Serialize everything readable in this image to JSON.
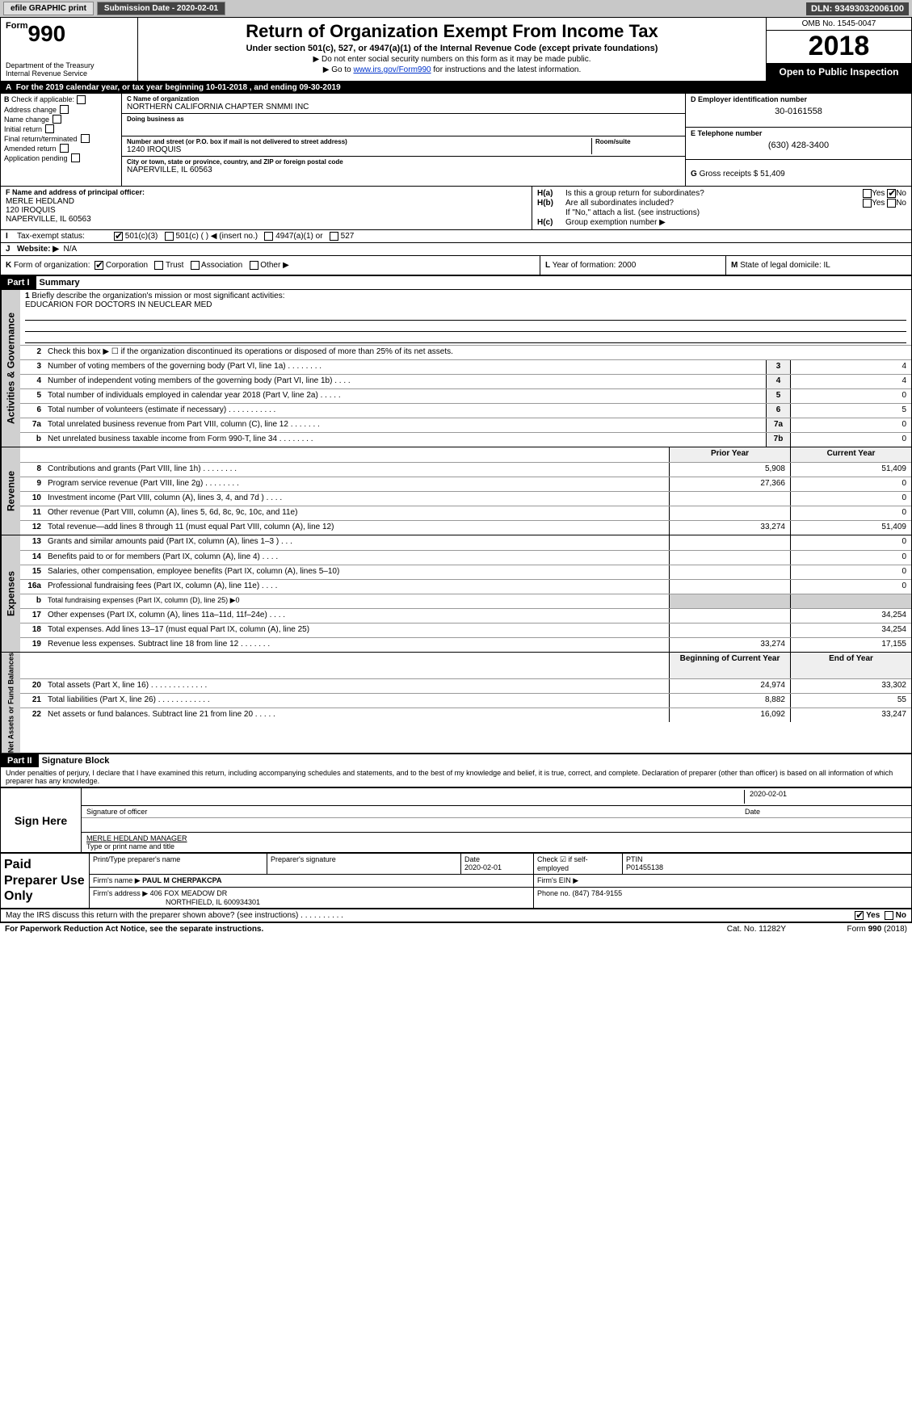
{
  "topbar": {
    "efile": "efile GRAPHIC print",
    "submission_label": "Submission Date - ",
    "submission_date": "2020-02-01",
    "dln_label": "DLN: ",
    "dln": "93493032006100"
  },
  "header": {
    "form_prefix": "Form",
    "form_number": "990",
    "dept": "Department of the Treasury\nInternal Revenue Service",
    "title": "Return of Organization Exempt From Income Tax",
    "subtitle": "Under section 501(c), 527, or 4947(a)(1) of the Internal Revenue Code (except private foundations)",
    "note1": "▶ Do not enter social security numbers on this form as it may be made public.",
    "note2_prefix": "▶ Go to ",
    "note2_link": "www.irs.gov/Form990",
    "note2_suffix": " for instructions and the latest information.",
    "omb": "OMB No. 1545-0047",
    "year": "2018",
    "open": "Open to Public Inspection"
  },
  "row_a": {
    "label": "A",
    "text_prefix": "For the 2019 calendar year, or tax year beginning ",
    "begin": "10-01-2018",
    "mid": " , and ending ",
    "end": "09-30-2019"
  },
  "section_b": {
    "label": "B",
    "check_if": "Check if applicable:",
    "items": [
      "Address change",
      "Name change",
      "Initial return",
      "Final return/terminated",
      "Amended return",
      "Application pending"
    ]
  },
  "section_c": {
    "name_label": "C Name of organization",
    "name": "NORTHERN CALIFORNIA CHAPTER SNMMI INC",
    "dba_label": "Doing business as",
    "dba": "",
    "street_label": "Number and street (or P.O. box if mail is not delivered to street address)",
    "street": "1240 IROQUIS",
    "room_label": "Room/suite",
    "city_label": "City or town, state or province, country, and ZIP or foreign postal code",
    "city": "NAPERVILLE, IL  60563"
  },
  "section_de": {
    "d_label": "D Employer identification number",
    "d_val": "30-0161558",
    "e_label": "E Telephone number",
    "e_val": "(630) 428-3400",
    "g_label": "G ",
    "g_text": "Gross receipts $ ",
    "g_val": "51,409"
  },
  "section_f": {
    "label": "F  Name and address of principal officer:",
    "line1": "MERLE HEDLAND",
    "line2": "120 IROQUIS",
    "line3": "NAPERVILLE, IL  60563"
  },
  "section_h": {
    "ha_label": "H(a)",
    "ha_text": "Is this a group return for subordinates?",
    "ha_yes": "Yes",
    "ha_no": "No",
    "hb_label": "H(b)",
    "hb_text": "Are all subordinates included?",
    "hb_yes": "Yes",
    "hb_no": "No",
    "hb_note": "If \"No,\" attach a list. (see instructions)",
    "hc_label": "H(c)",
    "hc_text": "Group exemption number ▶"
  },
  "row_i": {
    "label": "I",
    "text": "Tax-exempt status:",
    "opts": [
      "501(c)(3)",
      "501(c) (  ) ◀ (insert no.)",
      "4947(a)(1) or",
      "527"
    ]
  },
  "row_j": {
    "label": "J",
    "text": "Website: ▶",
    "val": "N/A"
  },
  "row_k": {
    "label": "K",
    "text": "Form of organization:",
    "opts": [
      "Corporation",
      "Trust",
      "Association",
      "Other ▶"
    ],
    "l_label": "L ",
    "l_text": "Year of formation: ",
    "l_val": "2000",
    "m_label": "M ",
    "m_text": "State of legal domicile: ",
    "m_val": "IL"
  },
  "part1": {
    "hdr": "Part I",
    "title": "Summary"
  },
  "summary": {
    "line1_label": "1",
    "line1_text": "Briefly describe the organization's mission or most significant activities:",
    "mission": "EDUCARION FOR DOCTORS IN NEUCLEAR MED",
    "line2_label": "2",
    "line2_text": "Check this box ▶ ☐ if the organization discontinued its operations or disposed of more than 25% of its net assets.",
    "lines": [
      {
        "n": "3",
        "t": "Number of voting members of the governing body (Part VI, line 1a)  .  .  .  .  .  .  .  .",
        "b": "3",
        "v": "4"
      },
      {
        "n": "4",
        "t": "Number of independent voting members of the governing body (Part VI, line 1b)  .  .  .  .",
        "b": "4",
        "v": "4"
      },
      {
        "n": "5",
        "t": "Total number of individuals employed in calendar year 2018 (Part V, line 2a)  .  .  .  .  .",
        "b": "5",
        "v": "0"
      },
      {
        "n": "6",
        "t": "Total number of volunteers (estimate if necessary)  .  .  .  .  .  .  .  .  .  .  .",
        "b": "6",
        "v": "5"
      },
      {
        "n": "7a",
        "t": "Total unrelated business revenue from Part VIII, column (C), line 12  .  .  .  .  .  .  .",
        "b": "7a",
        "v": "0"
      },
      {
        "n": "b",
        "t": "Net unrelated business taxable income from Form 990-T, line 34  .  .  .  .  .  .  .  .",
        "b": "7b",
        "v": "0"
      }
    ],
    "col_prior": "Prior Year",
    "col_current": "Current Year",
    "rev_lines": [
      {
        "n": "8",
        "t": "Contributions and grants (Part VIII, line 1h)  .  .  .  .  .  .  .  .",
        "p": "5,908",
        "c": "51,409"
      },
      {
        "n": "9",
        "t": "Program service revenue (Part VIII, line 2g)  .  .  .  .  .  .  .  .",
        "p": "27,366",
        "c": "0"
      },
      {
        "n": "10",
        "t": "Investment income (Part VIII, column (A), lines 3, 4, and 7d )  .  .  .  .",
        "p": "",
        "c": "0"
      },
      {
        "n": "11",
        "t": "Other revenue (Part VIII, column (A), lines 5, 6d, 8c, 9c, 10c, and 11e)",
        "p": "",
        "c": "0"
      },
      {
        "n": "12",
        "t": "Total revenue—add lines 8 through 11 (must equal Part VIII, column (A), line 12)",
        "p": "33,274",
        "c": "51,409"
      }
    ],
    "exp_lines": [
      {
        "n": "13",
        "t": "Grants and similar amounts paid (Part IX, column (A), lines 1–3 )  .  .  .",
        "p": "",
        "c": "0"
      },
      {
        "n": "14",
        "t": "Benefits paid to or for members (Part IX, column (A), line 4)  .  .  .  .",
        "p": "",
        "c": "0"
      },
      {
        "n": "15",
        "t": "Salaries, other compensation, employee benefits (Part IX, column (A), lines 5–10)",
        "p": "",
        "c": "0"
      },
      {
        "n": "16a",
        "t": "Professional fundraising fees (Part IX, column (A), line 11e)  .  .  .  .",
        "p": "",
        "c": "0"
      },
      {
        "n": "b",
        "t": "Total fundraising expenses (Part IX, column (D), line 25) ▶0",
        "p": "—",
        "c": "—"
      },
      {
        "n": "17",
        "t": "Other expenses (Part IX, column (A), lines 11a–11d, 11f–24e)  .  .  .  .",
        "p": "",
        "c": "34,254"
      },
      {
        "n": "18",
        "t": "Total expenses. Add lines 13–17 (must equal Part IX, column (A), line 25)",
        "p": "",
        "c": "34,254"
      },
      {
        "n": "19",
        "t": "Revenue less expenses. Subtract line 18 from line 12  .  .  .  .  .  .  .",
        "p": "33,274",
        "c": "17,155"
      }
    ],
    "col_begin": "Beginning of Current Year",
    "col_end": "End of Year",
    "net_lines": [
      {
        "n": "20",
        "t": "Total assets (Part X, line 16)  .  .  .  .  .  .  .  .  .  .  .  .  .",
        "p": "24,974",
        "c": "33,302"
      },
      {
        "n": "21",
        "t": "Total liabilities (Part X, line 26)  .  .  .  .  .  .  .  .  .  .  .  .",
        "p": "8,882",
        "c": "55"
      },
      {
        "n": "22",
        "t": "Net assets or fund balances. Subtract line 21 from line 20  .  .  .  .  .",
        "p": "16,092",
        "c": "33,247"
      }
    ],
    "side_gov": "Activities & Governance",
    "side_rev": "Revenue",
    "side_exp": "Expenses",
    "side_net": "Net Assets or Fund Balances"
  },
  "part2": {
    "hdr": "Part II",
    "title": "Signature Block",
    "penalty": "Under penalties of perjury, I declare that I have examined this return, including accompanying schedules and statements, and to the best of my knowledge and belief, it is true, correct, and complete. Declaration of preparer (other than officer) is based on all information of which preparer has any knowledge."
  },
  "sign": {
    "here": "Sign Here",
    "sig_officer": "Signature of officer",
    "date": "2020-02-01",
    "name": "MERLE HEDLAND  MANAGER",
    "name_lbl": "Type or print name and title"
  },
  "paid": {
    "title": "Paid Preparer Use Only",
    "row1": {
      "c1": "Print/Type preparer's name",
      "c2": "Preparer's signature",
      "c3_lbl": "Date",
      "c3": "2020-02-01",
      "c4_lbl": "Check ☑ if self-employed",
      "c5_lbl": "PTIN",
      "c5": "P01455138"
    },
    "row2": {
      "c1_lbl": "Firm's name    ▶",
      "c1": "PAUL M CHERPAKCPA",
      "c2_lbl": "Firm's EIN ▶",
      "c2": ""
    },
    "row3": {
      "c1_lbl": "Firm's address ▶",
      "c1": "406 FOX MEADOW DR",
      "c2_lbl": "Phone no. ",
      "c2": "(847) 784-9155"
    },
    "row3b": "NORTHFIELD, IL  600934301"
  },
  "footer": {
    "discuss": "May the IRS discuss this return with the preparer shown above? (see instructions)  .  .  .  .  .  .  .  .  .  .",
    "yes": "Yes",
    "no": "No",
    "pra": "For Paperwork Reduction Act Notice, see the separate instructions.",
    "cat": "Cat. No. 11282Y",
    "form": "Form 990 (2018)"
  }
}
